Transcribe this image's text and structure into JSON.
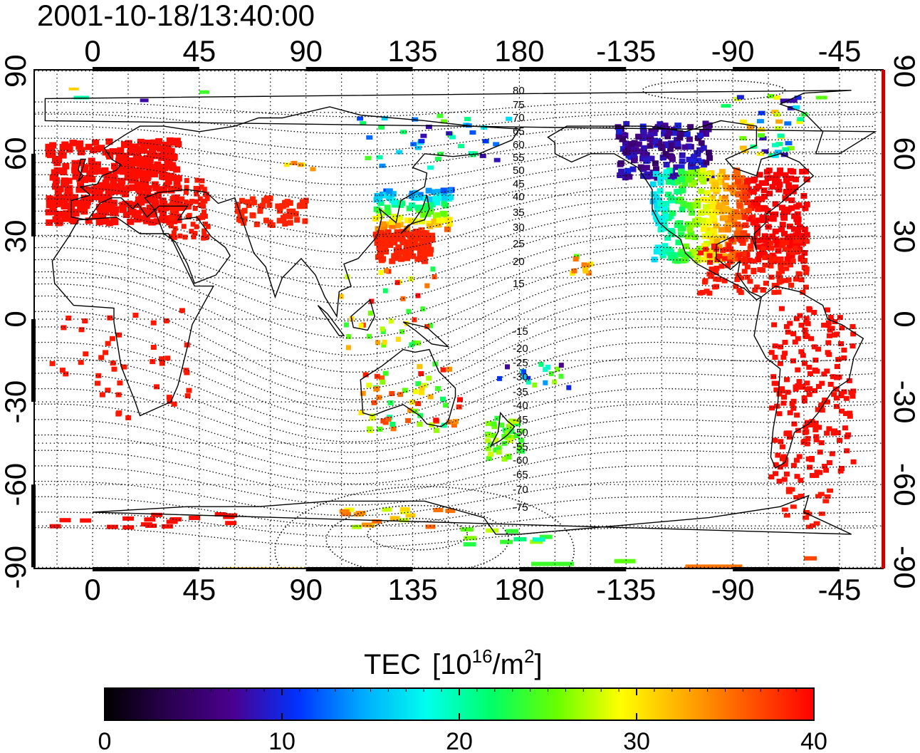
{
  "timestamp": "2001-10-18/13:40:00",
  "x_ticks": [
    "0",
    "45",
    "90",
    "135",
    "180",
    "-135",
    "-90",
    "-45"
  ],
  "y_ticks": [
    "90",
    "60",
    "30",
    "0",
    "-30",
    "-60",
    "-90"
  ],
  "contour_labels_north": [
    "80",
    "75",
    "70",
    "65",
    "60",
    "55",
    "50",
    "45",
    "40",
    "35",
    "30",
    "25",
    "20",
    "15"
  ],
  "contour_labels_south": [
    "-15",
    "-20",
    "-25",
    "-30",
    "-35",
    "-40",
    "-45",
    "-50",
    "-55",
    "-60",
    "-65",
    "-70",
    "-75"
  ],
  "colorbar": {
    "title_main": "TEC",
    "title_unit_open": "[10",
    "title_unit_exp": "16",
    "title_unit_mid": "/m",
    "title_unit_exp2": "2",
    "title_unit_close": "]",
    "ticks": [
      "0",
      "10",
      "20",
      "30",
      "40"
    ],
    "min": 0,
    "max": 40,
    "stops": [
      "#000000",
      "#2a0050",
      "#4a0090",
      "#0033ff",
      "#00aaff",
      "#00ffee",
      "#00ff66",
      "#66ff00",
      "#ffff00",
      "#ffaa00",
      "#ff5500",
      "#ff0000"
    ]
  },
  "map": {
    "lon_range": [
      -27,
      330
    ],
    "lat_range": [
      -95,
      95
    ],
    "regions": [
      {
        "name": "europe",
        "tec": 39.5
      },
      {
        "name": "japan-china",
        "tec": 38
      },
      {
        "name": "japan-north",
        "tec": 17
      },
      {
        "name": "canada-west",
        "tec": 7
      },
      {
        "name": "north-america-west",
        "tec": 17
      },
      {
        "name": "north-america-central",
        "tec": 25
      },
      {
        "name": "north-america-east",
        "tec": 39
      },
      {
        "name": "south-america",
        "tec": 39.5
      },
      {
        "name": "antarctica-south",
        "tec": 37
      }
    ]
  }
}
